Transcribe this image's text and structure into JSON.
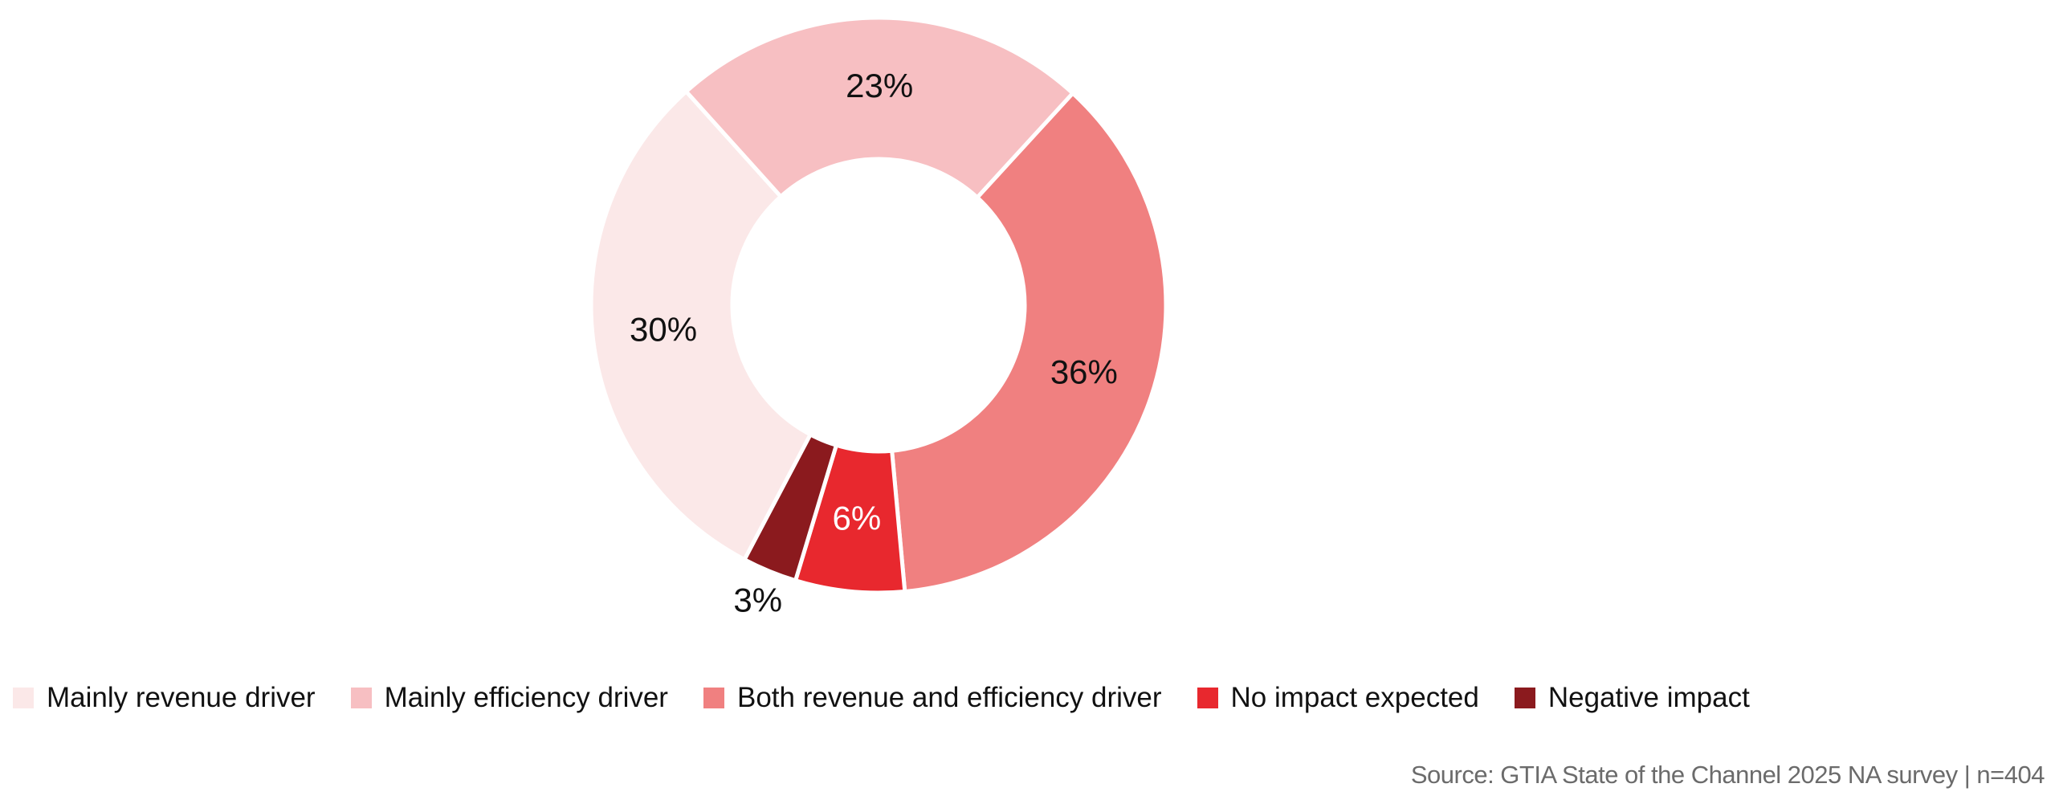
{
  "chart_data": {
    "type": "pie",
    "variant": "donut",
    "title": "",
    "categories": [
      "Both revenue and efficiency driver",
      "No impact expected",
      "Negative impact",
      "Mainly revenue driver",
      "Mainly efficiency driver"
    ],
    "values": [
      36,
      6,
      3,
      30,
      23
    ],
    "labels": [
      "36%",
      "6%",
      "3%",
      "30%",
      "23%"
    ],
    "colors": [
      "#f08080",
      "#e8282e",
      "#8b1a1e",
      "#fbe8e8",
      "#f7bfc2"
    ],
    "label_colors": [
      "#111111",
      "#ffffff",
      "#111111",
      "#111111",
      "#111111"
    ],
    "legend_position": "bottom",
    "legend": [
      {
        "label": "Mainly revenue driver",
        "color": "#fbe8e8"
      },
      {
        "label": "Mainly efficiency driver",
        "color": "#f7bfc2"
      },
      {
        "label": "Both revenue and efficiency driver",
        "color": "#f08080"
      },
      {
        "label": "No impact expected",
        "color": "#e8282e"
      },
      {
        "label": "Negative impact",
        "color": "#8b1a1e"
      }
    ]
  },
  "footer": {
    "source": "Source: GTIA State of the Channel 2025 NA survey | n=404"
  }
}
